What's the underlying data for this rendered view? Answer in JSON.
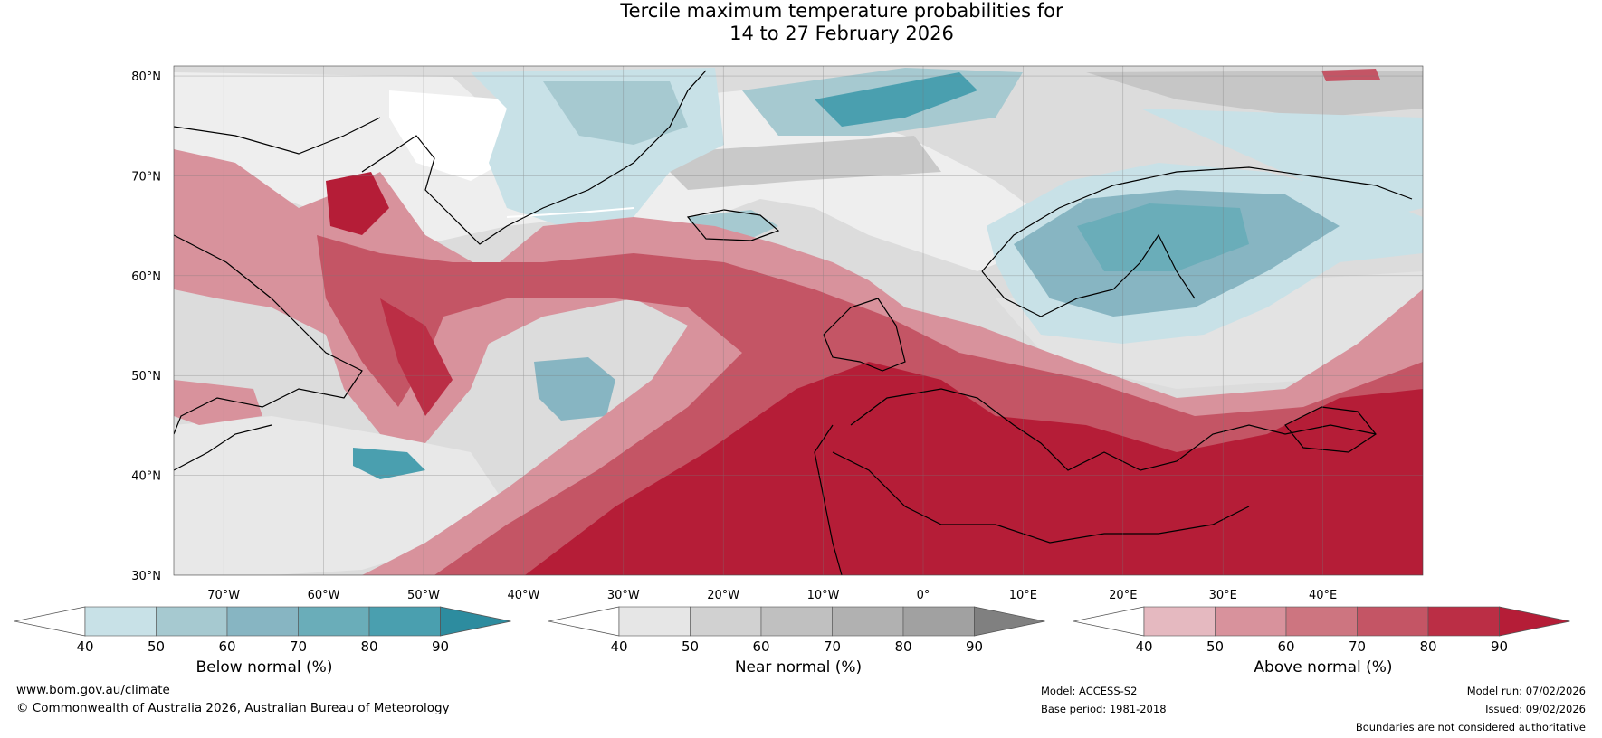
{
  "title": {
    "line1": "Tercile maximum temperature probabilities for",
    "line2": "14 to 27 February 2026"
  },
  "map": {
    "lat_labels": [
      "80°N",
      "70°N",
      "60°N",
      "50°N",
      "40°N",
      "30°N"
    ],
    "lat_values": [
      80,
      70,
      60,
      50,
      40,
      30
    ],
    "lon_labels": [
      "70°W",
      "60°W",
      "50°W",
      "40°W",
      "30°W",
      "20°W",
      "10°W",
      "0°",
      "10°E",
      "20°E",
      "30°E",
      "40°E"
    ],
    "lon_values": [
      -70,
      -60,
      -50,
      -40,
      -30,
      -20,
      -10,
      0,
      10,
      20,
      30,
      40
    ],
    "extent": {
      "lon_min": -75,
      "lon_max": 50,
      "lat_min": 30,
      "lat_max": 81
    }
  },
  "legends": {
    "below": {
      "label": "Below normal (%)",
      "ticks": [
        "40",
        "50",
        "60",
        "70",
        "80",
        "90"
      ],
      "colors": [
        "#ffffff",
        "#c8e1e7",
        "#a6c9d0",
        "#87b5c2",
        "#6aadb9",
        "#4a9faf",
        "#2d8c9f"
      ]
    },
    "near": {
      "label": "Near normal (%)",
      "ticks": [
        "40",
        "50",
        "60",
        "70",
        "80",
        "90"
      ],
      "colors": [
        "#ffffff",
        "#e6e6e6",
        "#d1d1d1",
        "#c0c0c0",
        "#b1b1b1",
        "#a1a1a1",
        "#808080"
      ]
    },
    "above": {
      "label": "Above normal (%)",
      "ticks": [
        "40",
        "50",
        "60",
        "70",
        "80",
        "90"
      ],
      "colors": [
        "#ffffff",
        "#e5b9c0",
        "#d8929c",
        "#cd7580",
        "#c45565",
        "#bb2e45",
        "#b51d37"
      ]
    }
  },
  "footer": {
    "website": "www.bom.gov.au/climate",
    "copyright": "© Commonwealth of Australia 2026, Australian Bureau of Meteorology",
    "model": "Model: ACCESS-S2",
    "base_period": "Base period: 1981-2018",
    "model_run": "Model run: 07/02/2026",
    "issued": "Issued: 09/02/2026",
    "disclaimer": "Boundaries are not considered authoritative"
  }
}
